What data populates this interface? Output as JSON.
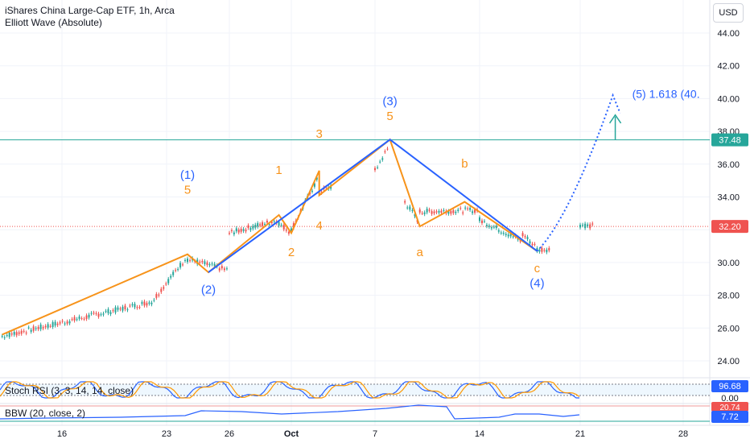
{
  "header": {
    "symbol_line": "iShares China Large-Cap ETF, 1h, Arca",
    "indicator_line": "Elliott Wave (Absolute)",
    "currency": "USD"
  },
  "indicators": {
    "stoch_rsi_label": "Stoch RSI (3, 3, 14, 14, close)",
    "stoch_rsi_value": "96.68",
    "stoch_rsi_zero": "0.00",
    "bbw_label": "BBW (20, close, 2)",
    "bbw_upper_value": "20.74",
    "bbw_value": "7.72"
  },
  "colors": {
    "up": "#26a69a",
    "down": "#ef5350",
    "wave_orange": "#f7931a",
    "wave_blue": "#2962ff",
    "level_line": "#26a69a",
    "price_line": "#ef5350",
    "rsi_k": "#2962ff",
    "rsi_d": "#ff9800",
    "bbw": "#2962ff"
  },
  "chart_data": {
    "type": "line",
    "title": "iShares China Large-Cap ETF, 1h, Arca",
    "y_ticks": [
      "24.00",
      "26.00",
      "28.00",
      "30.00",
      "32.00",
      "34.00",
      "36.00",
      "38.00",
      "40.00",
      "42.00",
      "44.00"
    ],
    "x_ticks": [
      "16",
      "23",
      "26",
      "Oct",
      "7",
      "14",
      "21",
      "28"
    ],
    "ylim": [
      22.5,
      45
    ],
    "current_price": "32.20",
    "level_price": "37.48",
    "projection_label": "(5) 1.618 (40.",
    "projection_target": 40.2,
    "series": [
      {
        "name": "orange waves",
        "points": [
          {
            "date": "Sep 11",
            "price": 25.6
          },
          {
            "date": "Sep 24",
            "price": 30.5
          },
          {
            "date": "Sep 25",
            "price": 29.4
          },
          {
            "date": "Sep 30",
            "price": 32.9
          },
          {
            "date": "Oct 1",
            "price": 31.8
          },
          {
            "date": "Oct 3",
            "price": 35.6
          },
          {
            "date": "Oct 3",
            "price": 34.1
          },
          {
            "date": "Oct 8",
            "price": 37.5
          },
          {
            "date": "Oct 10",
            "price": 32.2
          },
          {
            "date": "Oct 13",
            "price": 33.7
          },
          {
            "date": "Oct 18",
            "price": 30.7
          }
        ]
      },
      {
        "name": "blue waves",
        "points": [
          {
            "date": "Sep 25",
            "price": 29.4
          },
          {
            "date": "Oct 8",
            "price": 37.5
          },
          {
            "date": "Oct 18",
            "price": 30.7
          }
        ]
      }
    ],
    "wave_labels": [
      {
        "text": "(1)",
        "date": "Sep 24",
        "price": 35.1,
        "color": "blue"
      },
      {
        "text": "5",
        "date": "Sep 24",
        "price": 34.2,
        "color": "orange"
      },
      {
        "text": "(2)",
        "date": "Sep 25",
        "price": 28.1,
        "color": "blue"
      },
      {
        "text": "1",
        "date": "Sep 30",
        "price": 35.4,
        "color": "orange"
      },
      {
        "text": "2",
        "date": "Oct 1",
        "price": 30.4,
        "color": "orange"
      },
      {
        "text": "3",
        "date": "Oct 3",
        "price": 37.6,
        "color": "orange"
      },
      {
        "text": "4",
        "date": "Oct 3",
        "price": 32.0,
        "color": "orange"
      },
      {
        "text": "(3)",
        "date": "Oct 8",
        "price": 39.6,
        "color": "blue"
      },
      {
        "text": "5",
        "date": "Oct 8",
        "price": 38.7,
        "color": "orange"
      },
      {
        "text": "a",
        "date": "Oct 10",
        "price": 30.4,
        "color": "orange"
      },
      {
        "text": "b",
        "date": "Oct 13",
        "price": 35.8,
        "color": "orange"
      },
      {
        "text": "c",
        "date": "Oct 18",
        "price": 29.4,
        "color": "orange"
      },
      {
        "text": "(4)",
        "date": "Oct 18",
        "price": 28.5,
        "color": "blue"
      }
    ]
  }
}
